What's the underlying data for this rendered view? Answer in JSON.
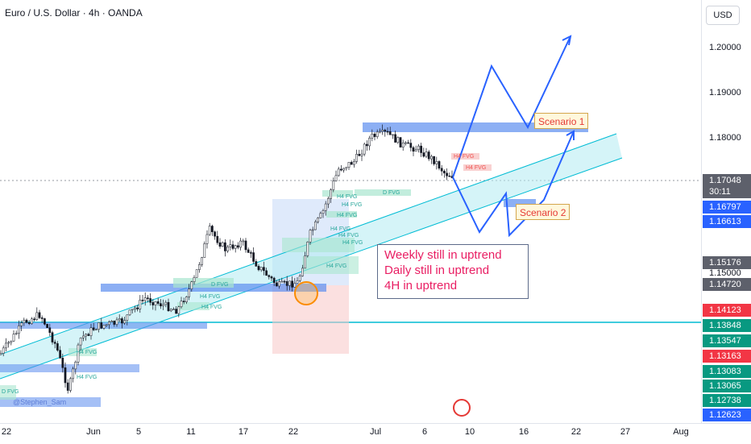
{
  "header": {
    "title": "Euro / U.S. Dollar · 4h · OANDA"
  },
  "price_axis": {
    "currency": "USD",
    "ticks": [
      "1.20000",
      "1.19000",
      "1.18000",
      "1.15000"
    ],
    "labels": [
      {
        "text": "1.17048",
        "sub": "30:11",
        "color": "#5d606b"
      },
      {
        "text": "1.16797",
        "color": "#2962ff"
      },
      {
        "text": "1.16613",
        "color": "#2962ff"
      },
      {
        "text": "1.15176",
        "color": "#5d606b"
      },
      {
        "text": "1.14720",
        "color": "#5d606b"
      },
      {
        "text": "1.14123",
        "color": "#f23645"
      },
      {
        "text": "1.13848",
        "color": "#089981"
      },
      {
        "text": "1.13547",
        "color": "#089981"
      },
      {
        "text": "1.13163",
        "color": "#f23645"
      },
      {
        "text": "1.13083",
        "color": "#089981"
      },
      {
        "text": "1.13065",
        "color": "#089981"
      },
      {
        "text": "1.12738",
        "color": "#089981"
      },
      {
        "text": "1.12623",
        "color": "#2962ff"
      }
    ]
  },
  "time_axis": {
    "ticks": [
      "22",
      "Jun",
      "5",
      "11",
      "17",
      "22",
      "Jul",
      "6",
      "10",
      "16",
      "22",
      "27",
      "Aug"
    ]
  },
  "annotations": {
    "note_lines": [
      "Weekly still in uptrend",
      "Daily still in uptrend",
      "4H in uptrend"
    ],
    "scenario1": "Scenario 1",
    "scenario2": "Scenario 2",
    "watermark": "@Stephen_Sam"
  },
  "fvg_labels": {
    "d_fvg": "D FVG",
    "h4_fvg": "H4 FVG"
  },
  "colors": {
    "up": "#26a69a",
    "down": "#ef5350",
    "channel": "#00bcd4",
    "zone": "#5b8def",
    "projection": "#2962ff",
    "horizontal": "#00bcd4"
  }
}
